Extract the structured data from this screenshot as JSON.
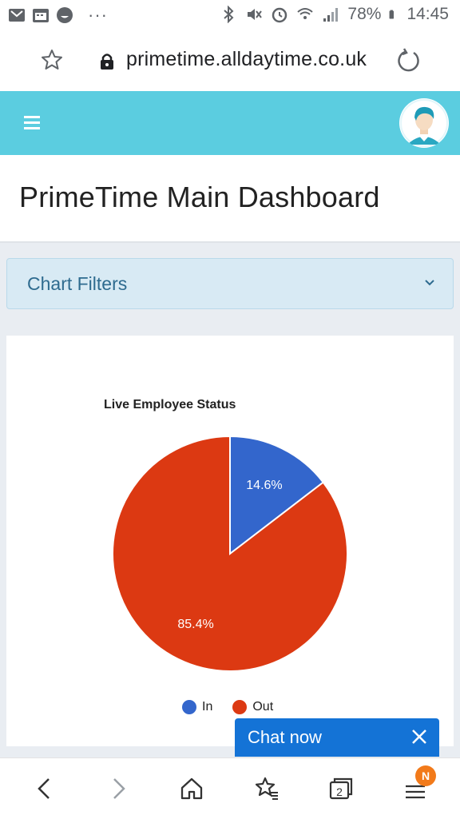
{
  "status_bar": {
    "battery_percent": "78%",
    "time": "14:45",
    "more_dots": "···"
  },
  "browser": {
    "url": "primetime.alldaytime.co.uk",
    "tab_count": "2",
    "menu_badge": "N"
  },
  "page": {
    "title": "PrimeTime Main Dashboard"
  },
  "filters": {
    "label": "Chart Filters"
  },
  "chat": {
    "label": "Chat now"
  },
  "colors": {
    "header": "#5bcde0",
    "in": "#3366cc",
    "out": "#dc3912",
    "chat": "#1473d6"
  },
  "chart_data": {
    "type": "pie",
    "title": "Live Employee Status",
    "categories": [
      "In",
      "Out"
    ],
    "values": [
      14.6,
      85.4
    ],
    "labels": [
      "14.6%",
      "85.4%"
    ],
    "legend": "bottom",
    "colors": [
      "#3366cc",
      "#dc3912"
    ]
  }
}
